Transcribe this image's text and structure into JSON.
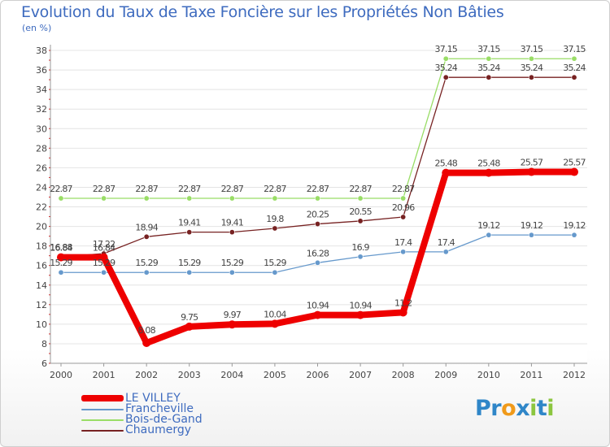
{
  "chart_data": {
    "type": "line",
    "title": "Evolution du Taux de Taxe Foncière sur les Propriétés Non Bâties",
    "ylabel": "(en %)",
    "xlabel": "",
    "categories": [
      "2000",
      "2001",
      "2002",
      "2003",
      "2004",
      "2005",
      "2006",
      "2007",
      "2008",
      "2009",
      "2010",
      "2011",
      "2012"
    ],
    "ylim": [
      6,
      38
    ],
    "yticks": [
      6,
      8,
      10,
      12,
      14,
      16,
      18,
      20,
      22,
      24,
      26,
      28,
      30,
      32,
      34,
      36,
      38
    ],
    "series": [
      {
        "name": "LE VILLEY",
        "color": "#ee0000",
        "values": [
          16.84,
          16.84,
          8.08,
          9.75,
          9.97,
          10.04,
          10.94,
          10.94,
          11.2,
          25.48,
          25.48,
          25.57,
          25.57
        ],
        "labels": [
          "16.84",
          "16.84",
          "8.08",
          "9.75",
          "9.97",
          "10.04",
          "10.94",
          "10.94",
          "11.2",
          "25.48",
          "25.48",
          "25.57",
          "25.57"
        ]
      },
      {
        "name": "Francheville",
        "color": "#6699cc",
        "values": [
          15.29,
          15.29,
          15.29,
          15.29,
          15.29,
          15.29,
          16.28,
          16.9,
          17.4,
          17.4,
          19.12,
          19.12,
          19.12
        ],
        "labels": [
          "15.29",
          "15.29",
          "15.29",
          "15.29",
          "15.29",
          "15.29",
          "16.28",
          "16.9",
          "17.4",
          "17.4",
          "19.12",
          "19.12",
          "19.12"
        ]
      },
      {
        "name": "Bois-de-Gand",
        "color": "#99dd66",
        "values": [
          22.87,
          22.87,
          22.87,
          22.87,
          22.87,
          22.87,
          22.87,
          22.87,
          22.87,
          37.15,
          37.15,
          37.15,
          37.15
        ],
        "labels": [
          "22.87",
          "22.87",
          "22.87",
          "22.87",
          "22.87",
          "22.87",
          "22.87",
          "22.87",
          "22.87",
          "37.15",
          "37.15",
          "37.15",
          "37.15"
        ]
      },
      {
        "name": "Chaumergy",
        "color": "#772222",
        "values": [
          16.88,
          17.22,
          18.94,
          19.41,
          19.41,
          19.8,
          20.25,
          20.55,
          20.96,
          35.24,
          35.24,
          35.24,
          35.24
        ],
        "labels": [
          "16.88",
          "17.22",
          "18.94",
          "19.41",
          "19.41",
          "19.8",
          "20.25",
          "20.55",
          "20.96",
          "35.24",
          "35.24",
          "35.24",
          "35.24"
        ]
      }
    ]
  },
  "legend": {
    "items": [
      {
        "label": "LE VILLEY",
        "color": "#ee0000"
      },
      {
        "label": "Francheville",
        "color": "#6699cc"
      },
      {
        "label": "Bois-de-Gand",
        "color": "#99dd66"
      },
      {
        "label": "Chaumergy",
        "color": "#772222"
      }
    ]
  },
  "logo": {
    "text": "Proxiti",
    "letters": [
      {
        "ch": "P",
        "color": "#2f86c8"
      },
      {
        "ch": "r",
        "color": "#2f86c8"
      },
      {
        "ch": "o",
        "color": "#f09a1a"
      },
      {
        "ch": "x",
        "color": "#2f86c8"
      },
      {
        "ch": "i",
        "color": "#8cc63f"
      },
      {
        "ch": "t",
        "color": "#2f86c8"
      },
      {
        "ch": "i",
        "color": "#8cc63f"
      }
    ]
  }
}
